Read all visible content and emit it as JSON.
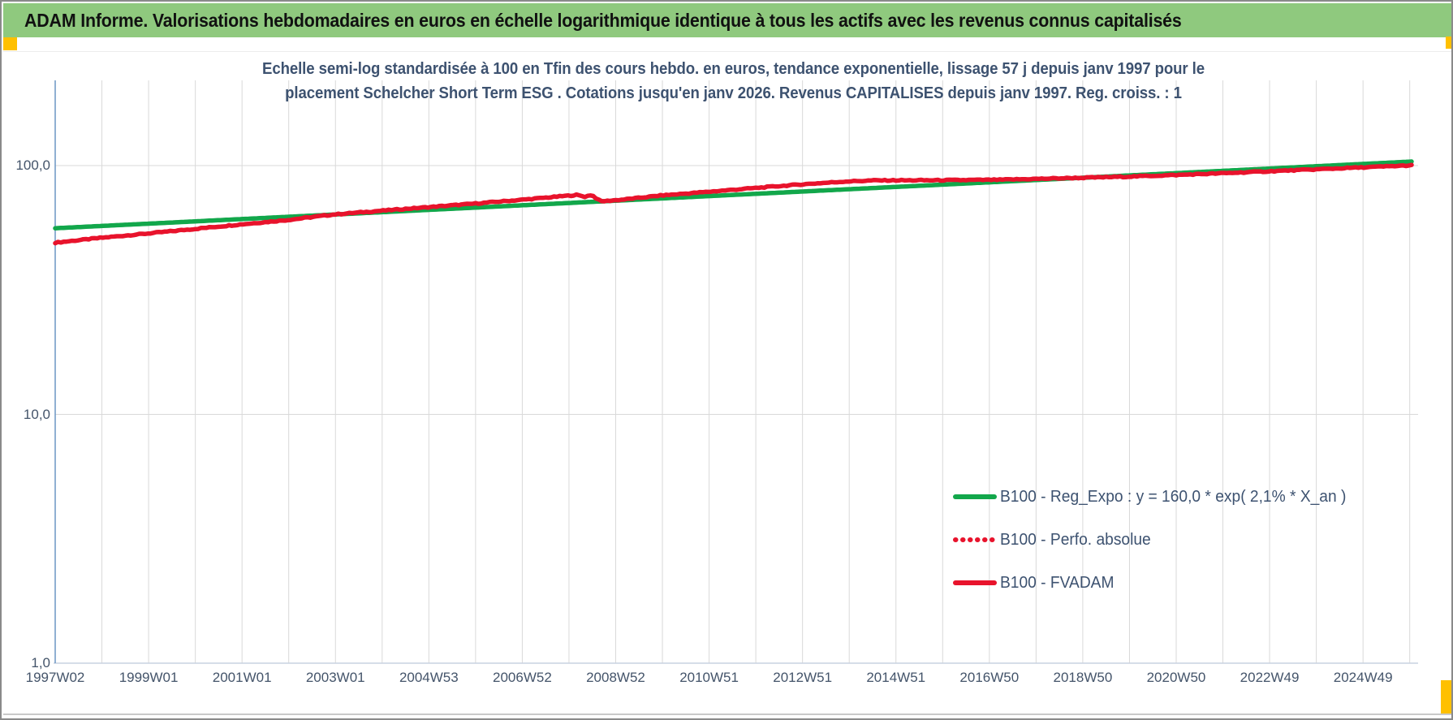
{
  "header": {
    "title": "ADAM Informe. Valorisations hebdomadaires en euros en échelle logarithmique identique à tous les actifs avec les revenus connus capitalisés",
    "bar_color": "#8fc97e",
    "accent_color": "#ffc000"
  },
  "chart_data": {
    "type": "line",
    "title_line1": "Echelle semi-log standardisée à 100 en Tfin des cours hebdo. en euros, tendance exponentielle, lissage 57 j depuis janv 1997 pour le",
    "title_line2": "placement Schelcher Short Term ESG . Cotations jusqu'en janv 2026. Revenus CAPITALISES depuis janv 1997. Reg. croiss. : 1",
    "y_axis": {
      "scale": "log",
      "ticks": [
        {
          "label": "100,0",
          "value": 100
        },
        {
          "label": "10,0",
          "value": 10
        },
        {
          "label": "1,0",
          "value": 1
        }
      ],
      "range": [
        1,
        220
      ],
      "grid": "on"
    },
    "x_axis": {
      "tick_labels": [
        "1997W02",
        "1999W01",
        "2001W01",
        "2003W01",
        "2004W53",
        "2006W52",
        "2008W52",
        "2010W51",
        "2012W51",
        "2014W51",
        "2016W50",
        "2018W50",
        "2020W50",
        "2022W49",
        "2024W49"
      ],
      "start_year": 1997.04,
      "end_year": 2026.08,
      "label_interval_years": 2,
      "grid_interval_years": 1,
      "grid": "on"
    },
    "legend": [
      {
        "label": "B100 - Reg_Expo : y = 160,0 * exp( 2,1% *  X_an )",
        "color": "#12a74b",
        "style": "solid"
      },
      {
        "label": "B100 - Perfo. absolue",
        "color": "#e8132c",
        "style": "dotted"
      },
      {
        "label": "B100 - FVADAM",
        "color": "#e8132c",
        "style": "solid"
      }
    ],
    "series": [
      {
        "name": "B100 - Reg_Expo",
        "color": "#12a74b",
        "style": "solid",
        "points": [
          [
            1997.04,
            56.0
          ],
          [
            2026.08,
            103.8
          ]
        ]
      },
      {
        "name": "B100 - Perfo. absolue",
        "color": "#e8132c",
        "style": "dotted",
        "points": "same_as_fvadam"
      },
      {
        "name": "B100 - FVADAM",
        "color": "#e8132c",
        "style": "solid",
        "points": [
          [
            1997.04,
            49.0
          ],
          [
            1998.0,
            51.2
          ],
          [
            1999.0,
            53.3
          ],
          [
            2000.0,
            55.6
          ],
          [
            2001.0,
            58.0
          ],
          [
            2002.0,
            60.4
          ],
          [
            2003.0,
            63.6
          ],
          [
            2004.0,
            65.8
          ],
          [
            2005.0,
            68.0
          ],
          [
            2006.0,
            70.3
          ],
          [
            2007.0,
            72.8
          ],
          [
            2008.2,
            76.2
          ],
          [
            2008.38,
            75.0
          ],
          [
            2008.52,
            76.3
          ],
          [
            2008.72,
            71.8
          ],
          [
            2009.2,
            73.0
          ],
          [
            2010.0,
            75.8
          ],
          [
            2011.0,
            78.4
          ],
          [
            2012.0,
            81.2
          ],
          [
            2013.0,
            84.0
          ],
          [
            2014.0,
            86.4
          ],
          [
            2014.6,
            87.2
          ],
          [
            2016.0,
            87.3
          ],
          [
            2017.3,
            87.7
          ],
          [
            2018.2,
            88.6
          ],
          [
            2019.0,
            89.3
          ],
          [
            2020.0,
            90.3
          ],
          [
            2021.0,
            91.6
          ],
          [
            2022.0,
            93.1
          ],
          [
            2023.0,
            94.8
          ],
          [
            2024.0,
            96.5
          ],
          [
            2025.0,
            98.3
          ],
          [
            2026.08,
            100.2
          ]
        ]
      }
    ],
    "colors": {
      "grid": "#d9d9d9",
      "axis_left": "#6c96c4",
      "axis_bottom": "#c9d2e0",
      "title_text": "#3d5270",
      "tick_text": "#44546a"
    }
  }
}
